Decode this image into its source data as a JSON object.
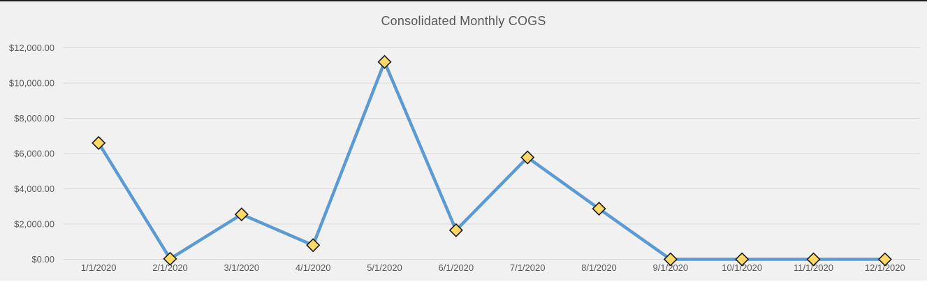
{
  "chart_data": {
    "type": "line",
    "title": "Consolidated Monthly COGS",
    "categories": [
      "1/1/2020",
      "2/1/2020",
      "3/1/2020",
      "4/1/2020",
      "5/1/2020",
      "6/1/2020",
      "7/1/2020",
      "8/1/2020",
      "9/1/2020",
      "10/1/2020",
      "11/1/2020",
      "12/1/2020"
    ],
    "values": [
      6600,
      30,
      2550,
      800,
      11200,
      1650,
      5780,
      2870,
      0,
      0,
      0,
      0
    ],
    "xlabel": "",
    "ylabel": "",
    "ylim": [
      0,
      12000
    ],
    "y_tick_step": 2000,
    "y_tick_labels": [
      "$0.00",
      "$2,000.00",
      "$4,000.00",
      "$6,000.00",
      "$8,000.00",
      "$10,000.00",
      "$12,000.00"
    ],
    "grid": true,
    "legend": "none",
    "colors": {
      "line": "#5B9BD5",
      "marker_fill": "#FFD966",
      "marker_border": "#1a1a1a",
      "gridline": "#D9D9D9",
      "title": "#595959",
      "axis_labels": "#595959",
      "background": "#F1F1F1",
      "top_border": "#1f1f1f"
    }
  }
}
